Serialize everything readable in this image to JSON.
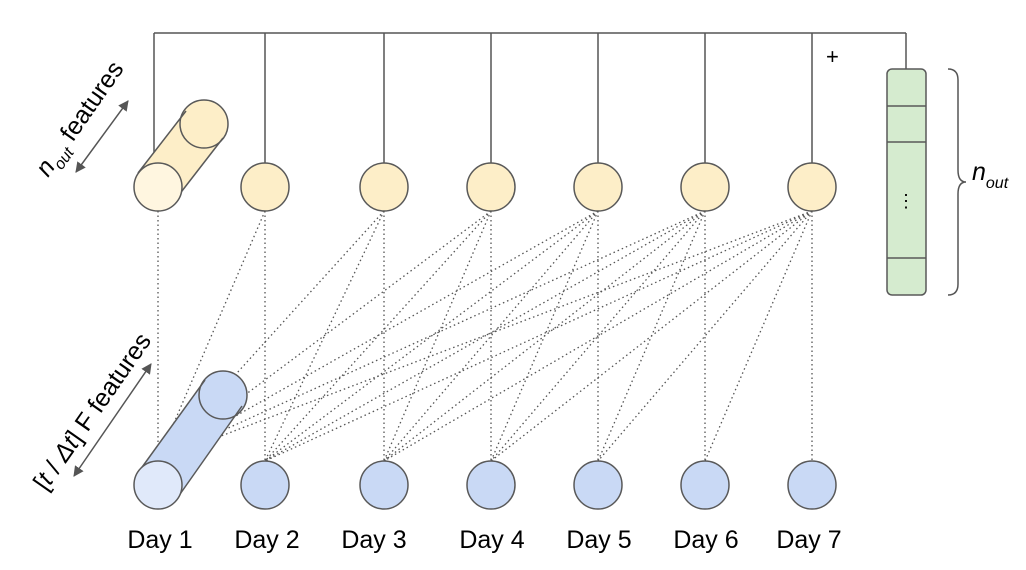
{
  "days": [
    "Day 1",
    "Day 2",
    "Day 3",
    "Day 4",
    "Day 5",
    "Day 6",
    "Day 7"
  ],
  "labels": {
    "top_n": "n",
    "top_sub": "out",
    "top_features": " features",
    "bottom_left": "[",
    "bottom_t": "t",
    "bottom_slash": " / ",
    "bottom_dt": "Δt",
    "bottom_right": "] F features",
    "plus": "+",
    "vector_dots": "⋮",
    "output_n": "n",
    "output_sub": "out"
  },
  "colors": {
    "top_node_fill": "#fdeec8",
    "top_node_light": "#fff6e0",
    "bottom_node_fill": "#c9d9f5",
    "bottom_node_light": "#e0e9fa",
    "vector_fill": "#d5ebcf",
    "stroke": "#595959",
    "line": "#555555"
  }
}
